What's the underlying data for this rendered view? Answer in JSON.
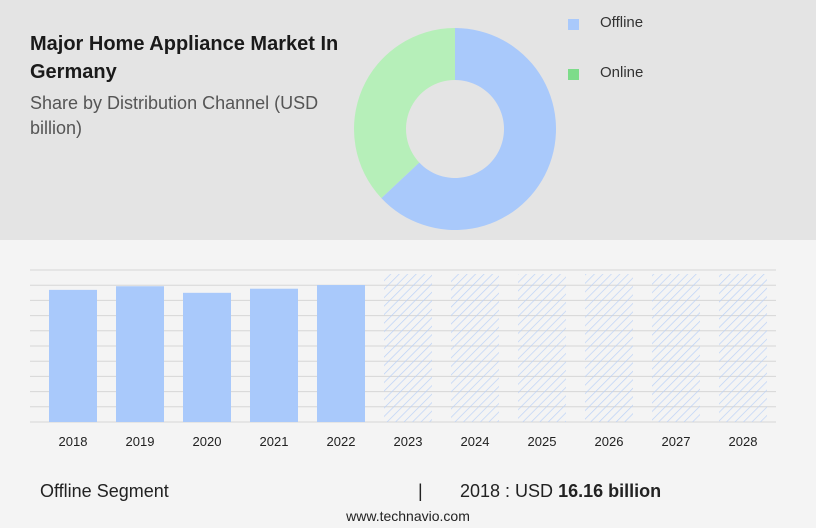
{
  "header": {
    "title": "Major Home Appliance Market In Germany",
    "subtitle": "Share by Distribution Channel (USD billion)"
  },
  "colors": {
    "offline": "#a9c9fb",
    "online": "#b6efb9",
    "online_legend": "#7ddc8a",
    "grid": "#d6d6d6",
    "hatch": "#bcd2f7"
  },
  "chart_data": [
    {
      "type": "pie",
      "donut": true,
      "categories": [
        "Offline",
        "Online"
      ],
      "values": [
        63,
        37
      ],
      "legend": [
        {
          "label": "Offline",
          "color": "#a9c9fb"
        },
        {
          "label": "Online",
          "color": "#7ddc8a"
        }
      ],
      "legend_position": "top-right"
    },
    {
      "type": "bar",
      "categories": [
        "2018",
        "2019",
        "2020",
        "2021",
        "2022",
        "2023",
        "2024",
        "2025",
        "2026",
        "2027",
        "2028"
      ],
      "values": [
        16.16,
        16.6,
        15.8,
        16.3,
        16.75,
        null,
        null,
        null,
        null,
        null,
        null
      ],
      "forecast": [
        false,
        false,
        false,
        false,
        false,
        true,
        true,
        true,
        true,
        true,
        true
      ],
      "ylim": [
        0,
        20
      ],
      "grid": true
    }
  ],
  "footer": {
    "segment": "Offline Segment",
    "separator": "|",
    "value_prefix": "2018 : USD ",
    "value_bold": "16.16 billion",
    "website": "www.technavio.com"
  }
}
